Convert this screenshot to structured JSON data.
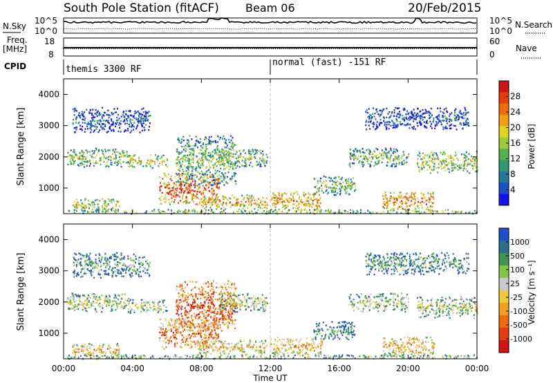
{
  "header": {
    "station": "South Pole Station (fitACF)",
    "beam": "Beam 06",
    "date": "20/Feb/2015"
  },
  "panels": {
    "nsky_label": "N.Sky",
    "nsearch_label": "N.Search",
    "nsky_ticks": [
      "10^5",
      "10^0"
    ],
    "nsearch_ticks": [
      "10^5",
      "10^0"
    ],
    "freq_label": [
      "Freq.",
      "[MHz]"
    ],
    "freq_ticks": [
      "18",
      "8"
    ],
    "nave_label": "Nave",
    "nave_ticks": [
      "60",
      "0"
    ],
    "cpid_label": "CPID",
    "cpid_left": "themis 3300 RF",
    "cpid_right": "normal (fast) -151 RF"
  },
  "chart_data": [
    {
      "type": "heatmap",
      "title": "",
      "ylabel": "Slant Range [km]",
      "xlabel": "",
      "xlim": [
        0,
        24
      ],
      "ylim": [
        180,
        4500
      ],
      "xticks": [
        "00:00",
        "04:00",
        "08:00",
        "12:00",
        "16:00",
        "20:00",
        "00:00"
      ],
      "yticks": [
        1000,
        2000,
        3000,
        4000
      ],
      "colorbar": {
        "label": "Power [dB]",
        "ticks": [
          "4",
          "8",
          "12",
          "16",
          "20",
          "24",
          "28"
        ],
        "colors": [
          "#1414e6",
          "#1e4fc8",
          "#1f7a9b",
          "#2f9a6d",
          "#55b050",
          "#9ccc3c",
          "#e6d21e",
          "#f0a014",
          "#f06e0a",
          "#e63c0a",
          "#d21414"
        ]
      },
      "regions": [
        {
          "t": [
            0.2,
            3.8
          ],
          "r": [
            1700,
            2300
          ],
          "level": 0.5
        },
        {
          "t": [
            3.8,
            6.0
          ],
          "r": [
            1650,
            2100
          ],
          "level": 0.6
        },
        {
          "t": [
            0.4,
            3.2
          ],
          "r": [
            250,
            700
          ],
          "level": 0.55
        },
        {
          "t": [
            5.5,
            9.0
          ],
          "r": [
            500,
            1500
          ],
          "level": 0.85
        },
        {
          "t": [
            6.5,
            10.0
          ],
          "r": [
            1100,
            2700
          ],
          "level": 0.45
        },
        {
          "t": [
            9.0,
            11.8
          ],
          "r": [
            1700,
            2300
          ],
          "level": 0.5
        },
        {
          "t": [
            7.8,
            11.8
          ],
          "r": [
            350,
            800
          ],
          "level": 0.7
        },
        {
          "t": [
            12.0,
            15.0
          ],
          "r": [
            300,
            900
          ],
          "level": 0.75
        },
        {
          "t": [
            14.5,
            17.0
          ],
          "r": [
            800,
            1400
          ],
          "level": 0.45
        },
        {
          "t": [
            16.5,
            20.0
          ],
          "r": [
            1700,
            2300
          ],
          "level": 0.45
        },
        {
          "t": [
            18.5,
            21.5
          ],
          "r": [
            300,
            900
          ],
          "level": 0.8
        },
        {
          "t": [
            20.5,
            24.0
          ],
          "r": [
            1500,
            2200
          ],
          "level": 0.55
        },
        {
          "t": [
            0.2,
            24.0
          ],
          "r": [
            200,
            330
          ],
          "level": 0.5
        },
        {
          "t": [
            0.5,
            5.0
          ],
          "r": [
            2800,
            3600
          ],
          "level": 0.2
        },
        {
          "t": [
            17.5,
            23.5
          ],
          "r": [
            2900,
            3600
          ],
          "level": 0.2
        }
      ]
    },
    {
      "type": "heatmap",
      "title": "",
      "ylabel": "Slant Range [km]",
      "xlabel": "Time UT",
      "xlim": [
        0,
        24
      ],
      "ylim": [
        180,
        4500
      ],
      "xticks": [
        "00:00",
        "04:00",
        "08:00",
        "12:00",
        "16:00",
        "20:00",
        "00:00"
      ],
      "yticks": [
        1000,
        2000,
        3000,
        4000
      ],
      "colorbar": {
        "label": "Velocity [m s⁻¹]",
        "ticks": [
          "1000",
          "500",
          "100",
          "25",
          "-25",
          "-100",
          "-500",
          "-1000"
        ],
        "colors": [
          "#1e50c8",
          "#2d6e8c",
          "#3c9650",
          "#82c846",
          "#c8c8c8",
          "#f0c83c",
          "#f0a01e",
          "#f06e0a",
          "#e63c14",
          "#d21414"
        ]
      },
      "regions": [
        {
          "t": [
            0.2,
            3.8
          ],
          "r": [
            1700,
            2300
          ],
          "level": 0.45
        },
        {
          "t": [
            3.8,
            6.0
          ],
          "r": [
            1650,
            2100
          ],
          "level": 0.45
        },
        {
          "t": [
            0.4,
            3.2
          ],
          "r": [
            250,
            700
          ],
          "level": 0.65
        },
        {
          "t": [
            5.5,
            9.0
          ],
          "r": [
            500,
            1500
          ],
          "level": 0.8
        },
        {
          "t": [
            6.5,
            10.0
          ],
          "r": [
            1100,
            2700
          ],
          "level": 0.85
        },
        {
          "t": [
            9.0,
            11.8
          ],
          "r": [
            1700,
            2300
          ],
          "level": 0.45
        },
        {
          "t": [
            7.8,
            11.8
          ],
          "r": [
            350,
            800
          ],
          "level": 0.6
        },
        {
          "t": [
            12.0,
            15.0
          ],
          "r": [
            300,
            900
          ],
          "level": 0.65
        },
        {
          "t": [
            14.5,
            17.0
          ],
          "r": [
            800,
            1400
          ],
          "level": 0.25
        },
        {
          "t": [
            16.5,
            20.0
          ],
          "r": [
            1700,
            2300
          ],
          "level": 0.45
        },
        {
          "t": [
            18.5,
            21.5
          ],
          "r": [
            300,
            900
          ],
          "level": 0.65
        },
        {
          "t": [
            20.5,
            24.0
          ],
          "r": [
            1500,
            2200
          ],
          "level": 0.45
        },
        {
          "t": [
            0.2,
            24.0
          ],
          "r": [
            200,
            330
          ],
          "level": 0.4
        },
        {
          "t": [
            0.5,
            5.0
          ],
          "r": [
            2800,
            3600
          ],
          "level": 0.3
        },
        {
          "t": [
            17.5,
            23.5
          ],
          "r": [
            2900,
            3600
          ],
          "level": 0.3
        }
      ]
    }
  ]
}
